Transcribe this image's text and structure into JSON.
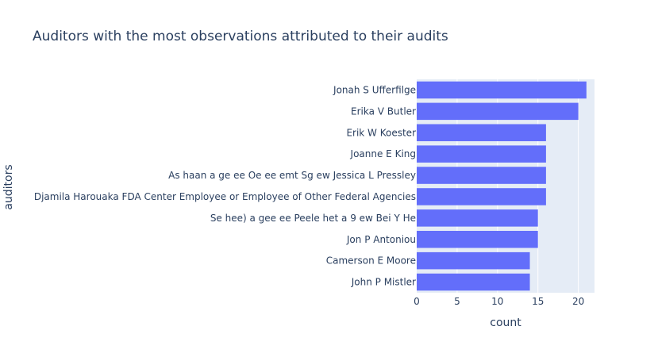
{
  "chart_data": {
    "type": "bar",
    "orientation": "horizontal",
    "title": "Auditors with the most observations attributed to their audits",
    "xlabel": "count",
    "ylabel": "auditors",
    "xlim": [
      0,
      22
    ],
    "x_ticks": [
      0,
      5,
      10,
      15,
      20
    ],
    "grid": true,
    "categories": [
      "Jonah S Ufferfilge",
      "Erika V Butler",
      "Erik W Koester",
      "Joanne E King",
      "As haan a ge ee Oe ee emt Sg ew  Jessica L Pressley",
      "Djamila Harouaka  FDA Center Employee or Employee of Other Federal Agencies",
      "Se hee) a gee ee Peele het a 9 ew  Bei Y He",
      "Jon P Antoniou",
      "Camerson E Moore",
      "John P Mistler"
    ],
    "values": [
      21,
      20,
      16,
      16,
      16,
      16,
      15,
      15,
      14,
      14
    ],
    "colors": {
      "bar": "#636efa",
      "plot_bg": "#e5ecf6",
      "grid": "#ffffff",
      "text": "#2a3f5f"
    }
  }
}
